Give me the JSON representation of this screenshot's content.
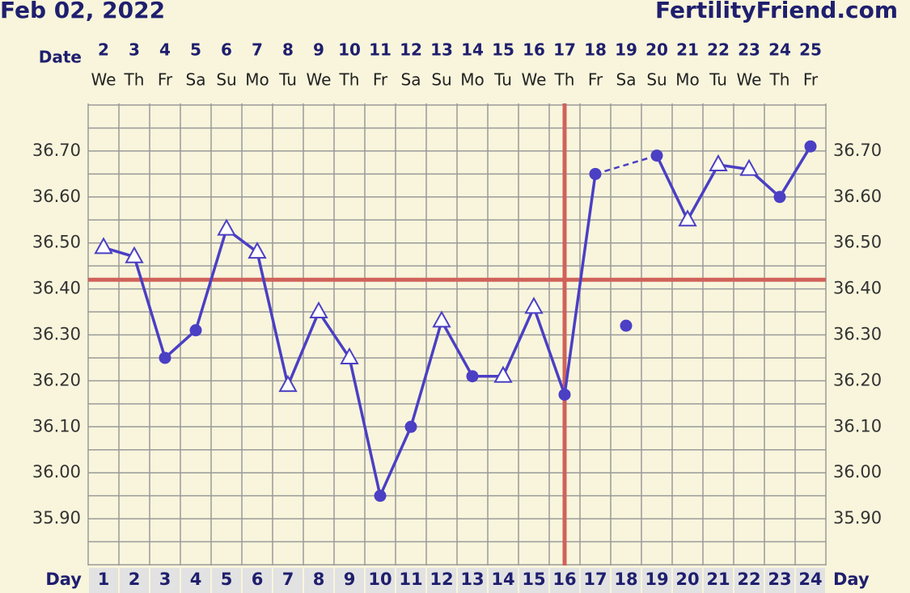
{
  "chart_data": {
    "type": "line",
    "title": "Feb 02, 2022",
    "brand": "FertilityFriend.com",
    "date_label": "Date",
    "day_label": "Day",
    "x": [
      1,
      2,
      3,
      4,
      5,
      6,
      7,
      8,
      9,
      10,
      11,
      12,
      13,
      14,
      15,
      16,
      17,
      18,
      19,
      20,
      21,
      22,
      23,
      24
    ],
    "dates": [
      2,
      3,
      4,
      5,
      6,
      7,
      8,
      9,
      10,
      11,
      12,
      13,
      14,
      15,
      16,
      17,
      18,
      19,
      20,
      21,
      22,
      23,
      24,
      25
    ],
    "weekdays": [
      "We",
      "Th",
      "Fr",
      "Sa",
      "Su",
      "Mo",
      "Tu",
      "We",
      "Th",
      "Fr",
      "Sa",
      "Su",
      "Mo",
      "Tu",
      "We",
      "Th",
      "Fr",
      "Sa",
      "Su",
      "Mo",
      "Tu",
      "We",
      "Th",
      "Fr"
    ],
    "series": [
      {
        "color": "#4b3fc4",
        "values": [
          36.49,
          36.47,
          36.25,
          36.31,
          36.53,
          36.48,
          36.19,
          36.35,
          36.25,
          35.95,
          36.1,
          36.33,
          36.21,
          36.21,
          36.36,
          36.17,
          36.65,
          null,
          36.69,
          36.55,
          36.67,
          36.66,
          36.6,
          36.71
        ],
        "markers": [
          "triangle",
          "triangle",
          "circle",
          "circle",
          "triangle",
          "triangle",
          "triangle",
          "triangle",
          "triangle",
          "circle",
          "circle",
          "triangle",
          "circle",
          "triangle",
          "triangle",
          "circle",
          "circle",
          null,
          "circle",
          "triangle",
          "triangle",
          "triangle",
          "circle",
          "circle"
        ],
        "gap_line": "dashed"
      },
      {
        "color": "#4b3fc4",
        "values": [
          null,
          null,
          null,
          null,
          null,
          null,
          null,
          null,
          null,
          null,
          null,
          null,
          null,
          null,
          null,
          null,
          null,
          36.32,
          null,
          null,
          null,
          null,
          null,
          null
        ],
        "markers": [
          null,
          null,
          null,
          null,
          null,
          null,
          null,
          null,
          null,
          null,
          null,
          null,
          null,
          null,
          null,
          null,
          null,
          "circle",
          null,
          null,
          null,
          null,
          null,
          null
        ]
      }
    ],
    "coverline": 36.42,
    "ovulation_day": 16,
    "marker_line_color": "#d0625a",
    "ylim": [
      35.8,
      36.8
    ],
    "yticks": [
      {
        "value": 35.9,
        "label": "35.90"
      },
      {
        "value": 36.0,
        "label": "36.00"
      },
      {
        "value": 36.1,
        "label": "36.10"
      },
      {
        "value": 36.2,
        "label": "36.20"
      },
      {
        "value": 36.3,
        "label": "36.30"
      },
      {
        "value": 36.4,
        "label": "36.40"
      },
      {
        "value": 36.5,
        "label": "36.50"
      },
      {
        "value": 36.6,
        "label": "36.60"
      },
      {
        "value": 36.7,
        "label": "36.70"
      }
    ],
    "ygrid": [
      35.8,
      35.85,
      35.9,
      35.95,
      36.0,
      36.05,
      36.1,
      36.15,
      36.2,
      36.25,
      36.3,
      36.35,
      36.4,
      36.45,
      36.5,
      36.55,
      36.6,
      36.65,
      36.7,
      36.75,
      36.8
    ],
    "grid": true
  }
}
